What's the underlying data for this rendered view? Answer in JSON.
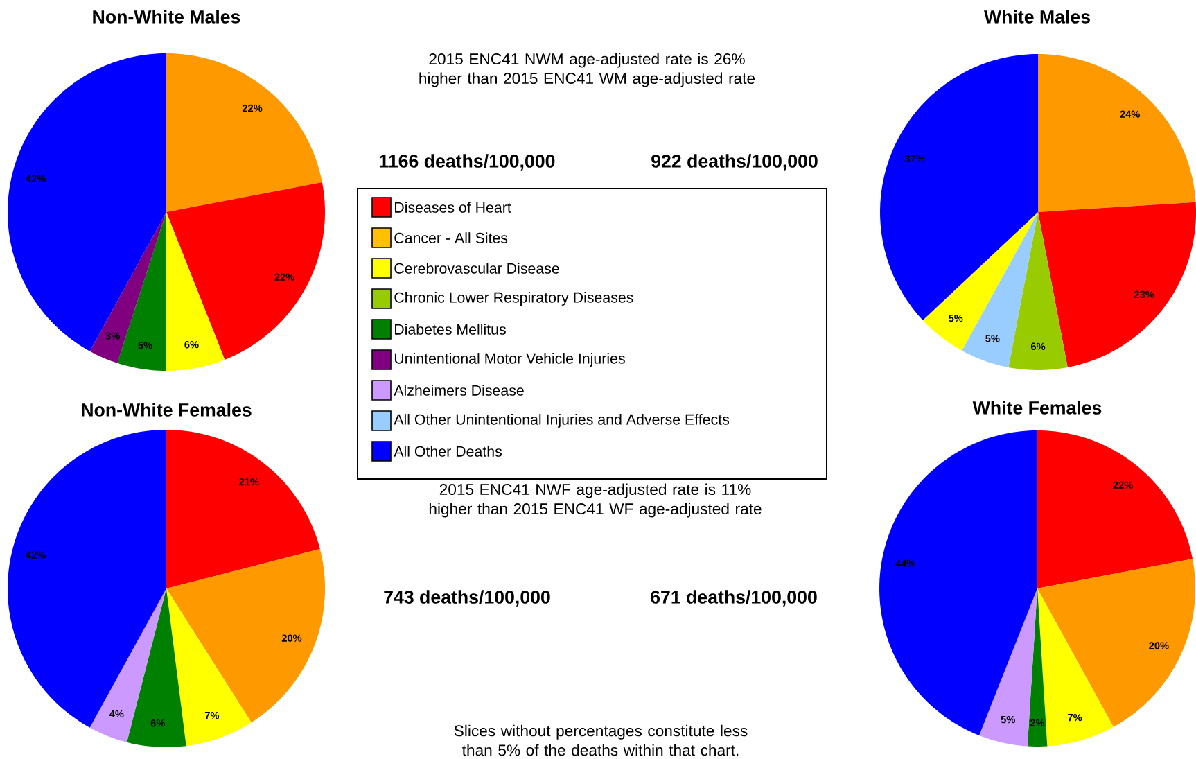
{
  "chart_data": [
    {
      "type": "pie",
      "title": "Non-White Males",
      "subtitle": "1166 deaths/100,000",
      "categories": [
        null,
        null,
        null,
        null,
        null,
        null
      ],
      "values": [
        22,
        22,
        6,
        5,
        3,
        42
      ],
      "colors": [
        "#ff9900",
        "#ff0000",
        "#ffff00",
        "#008000",
        "#800080",
        "#0000ff"
      ],
      "value_labels": [
        "22%",
        "22%",
        "6%",
        "5%",
        "3%",
        "42%"
      ]
    },
    {
      "type": "pie",
      "title": "White Males",
      "subtitle": "922 deaths/100,000",
      "categories": [
        null,
        null,
        null,
        null,
        null,
        null
      ],
      "values": [
        24,
        23,
        6,
        5,
        5,
        37
      ],
      "colors": [
        "#ff9900",
        "#ff0000",
        "#99cc00",
        "#99ccff",
        "#ffff00",
        "#0000ff"
      ],
      "value_labels": [
        "24%",
        "23%",
        "6%",
        "5%",
        "5%",
        "37%"
      ]
    },
    {
      "type": "pie",
      "title": "Non-White Females",
      "subtitle": "743 deaths/100,000",
      "categories": [
        null,
        null,
        null,
        null,
        null,
        null
      ],
      "values": [
        21,
        20,
        7,
        6,
        4,
        42
      ],
      "colors": [
        "#ff0000",
        "#ff9900",
        "#ffff00",
        "#008000",
        "#cc99ff",
        "#0000ff"
      ],
      "value_labels": [
        "21%",
        "20%",
        "7%",
        "6%",
        "4%",
        "42%"
      ]
    },
    {
      "type": "pie",
      "title": "White Females",
      "subtitle": "671 deaths/100,000",
      "categories": [
        null,
        null,
        null,
        null,
        null,
        null
      ],
      "values": [
        22,
        20,
        7,
        2,
        5,
        44
      ],
      "colors": [
        "#ff0000",
        "#ff9900",
        "#ffff00",
        "#008000",
        "#cc99ff",
        "#0000ff"
      ],
      "value_labels": [
        "22%",
        "20%",
        "7%",
        "2%",
        "5%",
        "44%"
      ]
    },
    {
      "type": "other",
      "categories": [
        "Diseases of Heart",
        "Cancer - All Sites",
        "Cerebrovascular Disease",
        "Chronic Lower Respiratory Diseases",
        "Diabetes Mellitus",
        "Unintentional Motor Vehicle Injuries",
        "Alzheimers Disease",
        "All Other Unintentional Injuries and Adverse Effects",
        "All Other Deaths"
      ],
      "colors": [
        "#ff0000",
        "#ffc000",
        "#ffff00",
        "#99cc00",
        "#008000",
        "#800080",
        "#cc99ff",
        "#99ccff",
        "#0000ff"
      ],
      "annotations": [
        "2015 ENC41 NWM age-adjusted rate is 26% higher than 2015 ENC41 WM age-adjusted rate",
        "2015 ENC41 NWF age-adjusted rate is 11% higher than 2015 ENC41 WF age-adjusted rate",
        "Slices without percentages constitute less than 5% of the deaths within that chart."
      ]
    }
  ]
}
